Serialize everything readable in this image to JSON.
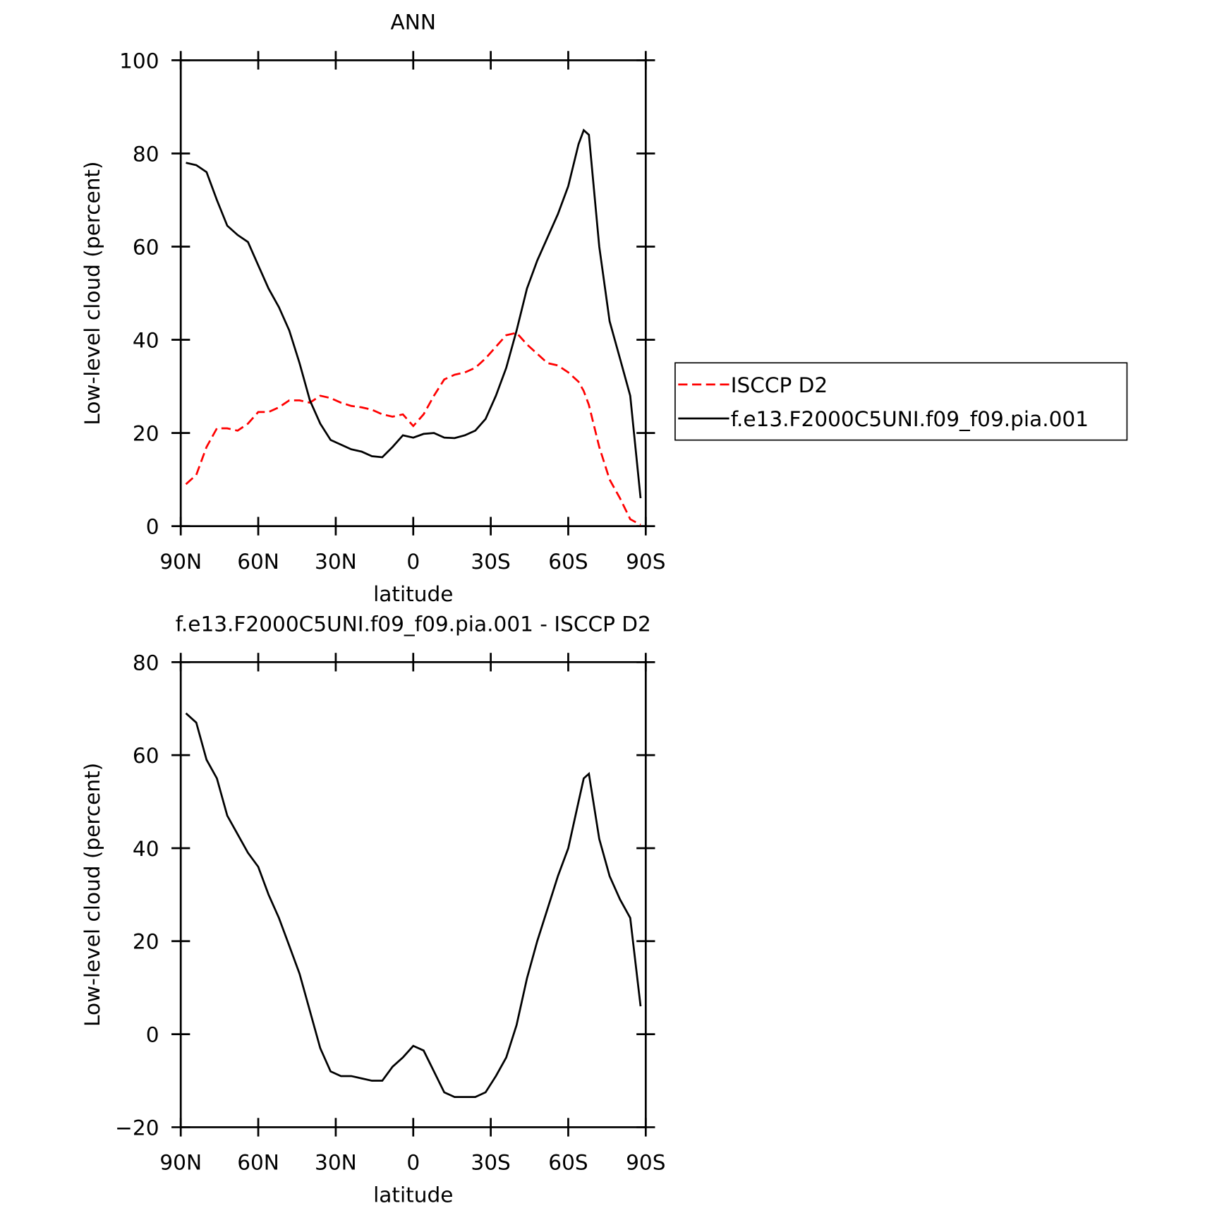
{
  "chart_data": [
    {
      "type": "line",
      "title": "ANN",
      "xlabel": "latitude",
      "ylabel": "Low-level cloud (percent)",
      "xlim": [
        90,
        -90
      ],
      "ylim": [
        0,
        100
      ],
      "xticks": [
        {
          "value": 90,
          "label": "90N"
        },
        {
          "value": 60,
          "label": "60N"
        },
        {
          "value": 30,
          "label": "30N"
        },
        0,
        {
          "value": -30,
          "label": "30S"
        },
        {
          "value": -60,
          "label": "60S"
        },
        {
          "value": -90,
          "label": "90S"
        }
      ],
      "yticks": [
        0,
        20,
        40,
        60,
        80,
        100
      ],
      "legend": "right",
      "x": [
        88,
        84,
        80,
        76,
        72,
        68,
        64,
        60,
        56,
        52,
        48,
        44,
        40,
        36,
        32,
        28,
        24,
        20,
        16,
        12,
        8,
        4,
        0,
        -4,
        -8,
        -12,
        -16,
        -20,
        -24,
        -28,
        -32,
        -36,
        -40,
        -44,
        -48,
        -52,
        -56,
        -60,
        -64,
        -66,
        -68,
        -72,
        -76,
        -80,
        -84,
        -88
      ],
      "series": [
        {
          "name": "ISCCP D2",
          "color": "#ff0000",
          "dash": true,
          "values": [
            9,
            11,
            17,
            21,
            21,
            20.5,
            22,
            24.5,
            24.5,
            25.5,
            27,
            27,
            26.5,
            28,
            27.5,
            26.5,
            25.8,
            25.5,
            25,
            24,
            23.5,
            24,
            21.5,
            24,
            28,
            31.5,
            32.5,
            33,
            34,
            36,
            38.5,
            41,
            41.5,
            39,
            37,
            35,
            34.5,
            33,
            31,
            29,
            26,
            17,
            10,
            6,
            1.5,
            0.3
          ]
        },
        {
          "name": "f.e13.F2000C5UNI.f09_f09.pia.001",
          "color": "#000000",
          "dash": false,
          "values": [
            78,
            77.5,
            76,
            70,
            64.5,
            62.5,
            61,
            56,
            51,
            47,
            42,
            35,
            27,
            22,
            18.5,
            17.5,
            16.5,
            16,
            15,
            14.8,
            17,
            19.5,
            19,
            19.8,
            20,
            19,
            18.9,
            19.5,
            20.5,
            23,
            28,
            34,
            42,
            51,
            57,
            62,
            67,
            73,
            82,
            85,
            84,
            60,
            44,
            36,
            28,
            6
          ]
        }
      ]
    },
    {
      "type": "line",
      "title": "f.e13.F2000C5UNI.f09_f09.pia.001 - ISCCP D2",
      "xlabel": "latitude",
      "ylabel": "Low-level cloud (percent)",
      "xlim": [
        90,
        -90
      ],
      "ylim": [
        -20,
        80
      ],
      "xticks": [
        {
          "value": 90,
          "label": "90N"
        },
        {
          "value": 60,
          "label": "60N"
        },
        {
          "value": 30,
          "label": "30N"
        },
        0,
        {
          "value": -30,
          "label": "30S"
        },
        {
          "value": -60,
          "label": "60S"
        },
        {
          "value": -90,
          "label": "90S"
        }
      ],
      "yticks": [
        {
          "value": -20,
          "label": "−20"
        },
        0,
        20,
        40,
        60,
        80
      ],
      "x": [
        88,
        84,
        80,
        76,
        72,
        68,
        64,
        60,
        56,
        52,
        48,
        44,
        40,
        36,
        32,
        28,
        24,
        20,
        16,
        12,
        8,
        4,
        0,
        -4,
        -8,
        -12,
        -16,
        -20,
        -24,
        -28,
        -32,
        -36,
        -40,
        -44,
        -48,
        -52,
        -56,
        -60,
        -64,
        -66,
        -68,
        -72,
        -76,
        -80,
        -84,
        -88
      ],
      "series": [
        {
          "color": "#000000",
          "dash": false,
          "values": [
            69,
            67,
            59,
            55,
            47,
            43,
            39,
            36,
            30,
            25,
            19,
            13,
            5,
            -3,
            -8,
            -9,
            -9,
            -9.5,
            -10,
            -10,
            -7,
            -5,
            -2.5,
            -3.5,
            -8,
            -12.5,
            -13.5,
            -13.5,
            -13.5,
            -12.5,
            -9,
            -5,
            2,
            12,
            20,
            27,
            34,
            40,
            50,
            55,
            56,
            42,
            34,
            29,
            25,
            6
          ]
        }
      ]
    }
  ]
}
